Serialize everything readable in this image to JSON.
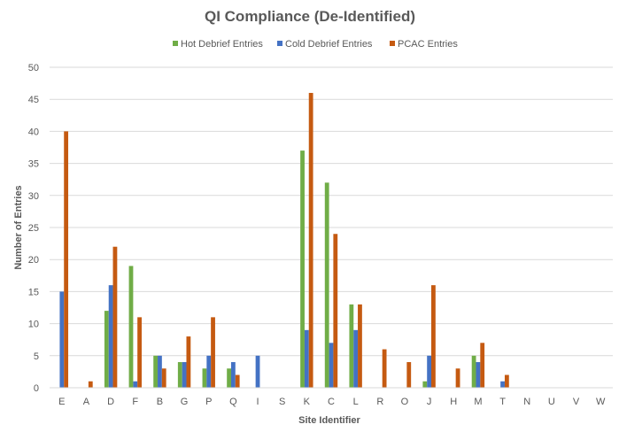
{
  "chart_data": {
    "type": "bar",
    "title": "QI Compliance (De-Identified)",
    "xlabel": "Site Identifier",
    "ylabel": "Number of Entries",
    "ylim": [
      0,
      50
    ],
    "yticks": [
      0,
      5,
      10,
      15,
      20,
      25,
      30,
      35,
      40,
      45,
      50
    ],
    "grid": true,
    "legend_position": "top",
    "categories": [
      "E",
      "A",
      "D",
      "F",
      "B",
      "G",
      "P",
      "Q",
      "I",
      "S",
      "K",
      "C",
      "L",
      "R",
      "O",
      "J",
      "H",
      "M",
      "T",
      "N",
      "U",
      "V",
      "W"
    ],
    "series": [
      {
        "name": "Hot Debrief Entries",
        "color": "#70AD47",
        "values": [
          0,
          0,
          12,
          19,
          5,
          4,
          3,
          3,
          0,
          0,
          37,
          32,
          13,
          0,
          0,
          1,
          0,
          5,
          0,
          0,
          0,
          0,
          0
        ]
      },
      {
        "name": "Cold Debrief Entries",
        "color": "#4472C4",
        "values": [
          15,
          0,
          16,
          1,
          5,
          4,
          5,
          4,
          5,
          0,
          9,
          7,
          9,
          0,
          0,
          5,
          0,
          4,
          1,
          0,
          0,
          0,
          0
        ]
      },
      {
        "name": "PCAC Entries",
        "color": "#C55A11",
        "values": [
          40,
          1,
          22,
          11,
          3,
          8,
          11,
          2,
          0,
          0,
          46,
          24,
          13,
          6,
          4,
          16,
          3,
          7,
          2,
          0,
          0,
          0,
          0
        ]
      }
    ]
  }
}
